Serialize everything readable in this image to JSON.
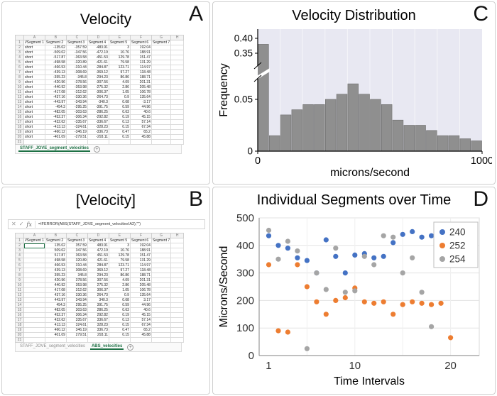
{
  "figure": {
    "background": "#ffffff",
    "excel_green": "#1e7145"
  },
  "panels": {
    "a": {
      "letter": "A",
      "title": "Velocity"
    },
    "b": {
      "letter": "B",
      "title": "[Velocity]"
    },
    "c": {
      "letter": "C",
      "title": "Velocity Distribution"
    },
    "d": {
      "letter": "D",
      "title": "Individual Segments over Time"
    }
  },
  "spreadsheet_a": {
    "column_letters": [
      "A",
      "B",
      "C",
      "D",
      "E",
      "F",
      "G",
      "H"
    ],
    "header_row": [
      "//Segment 1",
      "Segment 2",
      "Segment 3",
      "Segment 4",
      "Segment 5",
      "Segment 6",
      "Segment 7",
      ""
    ],
    "rows": [
      [
        "short",
        "-135.02",
        "-357.59",
        "-483.91",
        "3",
        "192.04"
      ],
      [
        "short",
        "-509.02",
        "-347.56",
        "-472.19",
        "10.76",
        "188.91"
      ],
      [
        "short",
        "-517.87",
        "-363.58",
        "-451.53",
        "129.78",
        "151.47"
      ],
      [
        "short",
        "-498.58",
        "-320.89",
        "-421.61",
        "79.58",
        "131.29"
      ],
      [
        "short",
        "-466.53",
        "-310.44",
        "-284.87",
        "123.71",
        "114.97"
      ],
      [
        "short",
        "-439.13",
        "-308.69",
        "-369.12",
        "97.27",
        "118.48"
      ],
      [
        "short",
        "-355.23",
        "-345.8",
        "-294.23",
        "86.86",
        "188.71"
      ],
      [
        "short",
        "-420.96",
        "-378.56",
        "-307.56",
        "4.09",
        "201.31"
      ],
      [
        "short",
        "-440.92",
        "-353.98",
        "-275.32",
        "2.86",
        "205.48"
      ],
      [
        "short",
        "-417.08",
        "-312.62",
        "-306.37",
        "1.05",
        "106.78"
      ],
      [
        "short",
        "-437.16",
        "-330.36",
        "-264.73",
        "0.9",
        "135.64"
      ],
      [
        "short",
        "-443.97",
        "-343.94",
        "-340.3",
        "0.68",
        "-3.17"
      ],
      [
        "short",
        "-454.3",
        "-295.25",
        "-391.75",
        "0.59",
        "44.96"
      ],
      [
        "short",
        "-482.05",
        "-303.63",
        "-286.25",
        "0.63",
        "40.6"
      ],
      [
        "short",
        "-452.37",
        "-306.34",
        "-292.82",
        "0.19",
        "45.15"
      ],
      [
        "short",
        "-432.62",
        "-335.67",
        "-336.67",
        "0.13",
        "57.14"
      ],
      [
        "short",
        "-413.13",
        "-324.61",
        "-328.23",
        "0.15",
        "67.34"
      ],
      [
        "short",
        "-460.12",
        "-346.19",
        "-336.73",
        "0.47",
        "65.2"
      ],
      [
        "short",
        "-401.09",
        "-279.51",
        "-293.11",
        "0.15",
        "45.88"
      ]
    ],
    "total_rows": 21,
    "tabs": [
      {
        "label": "STAFF_JOVE_segment_velocities",
        "active": true
      }
    ],
    "add_sheet_label": "+"
  },
  "spreadsheet_b": {
    "formula_bar": {
      "cancel": "✕",
      "confirm": "✓",
      "fx": "fx",
      "formula": "=IFERROR(ABS(STAFF_JOVE_segment_velocities!A2),\"\")"
    },
    "column_letters": [
      "A",
      "B",
      "C",
      "D",
      "E",
      "F",
      "G",
      "H"
    ],
    "header_row": [
      "//Segment 1",
      "Segment 2",
      "Segment 3",
      "Segment 4",
      "Segment 5",
      "Segment 6",
      "Segment 7",
      ""
    ],
    "rows": [
      [
        "",
        "135.02",
        "357.59",
        "483.91",
        "3",
        "192.04"
      ],
      [
        "",
        "509.02",
        "347.56",
        "472.19",
        "10.76",
        "188.91"
      ],
      [
        "",
        "517.87",
        "363.58",
        "451.53",
        "129.78",
        "151.47"
      ],
      [
        "",
        "498.58",
        "320.89",
        "421.61",
        "79.58",
        "131.29"
      ],
      [
        "",
        "466.53",
        "310.44",
        "284.87",
        "123.71",
        "114.97"
      ],
      [
        "",
        "439.13",
        "308.69",
        "369.12",
        "97.27",
        "118.48"
      ],
      [
        "",
        "355.23",
        "345.8",
        "294.23",
        "86.86",
        "188.71"
      ],
      [
        "",
        "420.96",
        "378.56",
        "307.56",
        "4.09",
        "201.31"
      ],
      [
        "",
        "440.92",
        "353.98",
        "275.32",
        "2.86",
        "205.48"
      ],
      [
        "",
        "417.08",
        "312.62",
        "306.37",
        "1.05",
        "106.78"
      ],
      [
        "",
        "437.16",
        "330.36",
        "264.73",
        "0.9",
        "135.64"
      ],
      [
        "",
        "443.97",
        "343.94",
        "340.3",
        "0.68",
        "3.17"
      ],
      [
        "",
        "454.3",
        "295.25",
        "391.75",
        "0.59",
        "44.96"
      ],
      [
        "",
        "482.05",
        "303.63",
        "286.25",
        "0.63",
        "40.6"
      ],
      [
        "",
        "452.37",
        "306.34",
        "292.82",
        "0.19",
        "45.15"
      ],
      [
        "",
        "432.62",
        "335.67",
        "336.67",
        "0.13",
        "57.14"
      ],
      [
        "",
        "413.13",
        "324.61",
        "328.23",
        "0.15",
        "67.34"
      ],
      [
        "",
        "460.12",
        "346.19",
        "336.73",
        "0.47",
        "65.2"
      ],
      [
        "",
        "401.09",
        "279.51",
        "293.11",
        "0.15",
        "45.88"
      ]
    ],
    "total_rows": 21,
    "selected_cell": {
      "row": 2,
      "col": 0
    },
    "tabs": [
      {
        "label": "STAFF_JOVE_segment_velocities",
        "active": false
      },
      {
        "label": "ABS_velocities",
        "active": true
      }
    ],
    "add_sheet_label": "+"
  },
  "chart_data": [
    {
      "type": "bar",
      "panel": "C",
      "title": "Velocity Distribution",
      "xlabel": "microns/second",
      "ylabel": "Frequency",
      "xlim": [
        0,
        1000
      ],
      "bin_start": 0,
      "bin_width": 50,
      "values": [
        0.38,
        0.015,
        0.035,
        0.04,
        0.045,
        0.045,
        0.05,
        0.055,
        0.065,
        0.055,
        0.05,
        0.045,
        0.03,
        0.025,
        0.025,
        0.02,
        0.015,
        0.015,
        0.012,
        0.01
      ],
      "x_ticks": [
        0,
        1000
      ],
      "x_tick_labels": [
        "0",
        "1000"
      ],
      "y_ticks": [
        0,
        0.05,
        0.35,
        0.4
      ],
      "y_tick_labels": [
        "0",
        "0.05",
        "0.35",
        "0.40"
      ],
      "axis_break_between": [
        0.05,
        0.35
      ],
      "bar_color": "#8f8f8f",
      "bar_edge_color": "#6e6e6e",
      "plot_bg": "#e8e8f2",
      "grid": true,
      "legend": false
    },
    {
      "type": "scatter",
      "panel": "D",
      "title": "Individual Segments over Time",
      "xlabel": "Time Intervals",
      "ylabel": "Microns/Second",
      "xlim": [
        0,
        23
      ],
      "ylim": [
        0,
        500
      ],
      "x_ticks": [
        1,
        10,
        20
      ],
      "y_ticks": [
        0,
        100,
        200,
        300,
        400,
        500
      ],
      "x": [
        1,
        2,
        3,
        4,
        5,
        6,
        7,
        8,
        9,
        10,
        11,
        12,
        13,
        14,
        15,
        16,
        17,
        18,
        19,
        20
      ],
      "series": [
        {
          "name": "240",
          "color": "#4472C4",
          "values": [
            435,
            400,
            390,
            355,
            345,
            300,
            420,
            360,
            300,
            365,
            370,
            355,
            360,
            410,
            440,
            450,
            430,
            435,
            400,
            395
          ]
        },
        {
          "name": "252",
          "color": "#ED7D31",
          "values": [
            330,
            90,
            85,
            330,
            250,
            195,
            150,
            200,
            210,
            245,
            195,
            190,
            195,
            150,
            185,
            195,
            190,
            185,
            190,
            65
          ]
        },
        {
          "name": "254",
          "color": "#A5A5A5",
          "values": [
            455,
            350,
            415,
            380,
            25,
            300,
            240,
            390,
            230,
            235,
            360,
            330,
            435,
            430,
            300,
            355,
            230,
            105,
            445,
            440
          ]
        }
      ],
      "legend_position": "top-right",
      "grid": true
    }
  ]
}
